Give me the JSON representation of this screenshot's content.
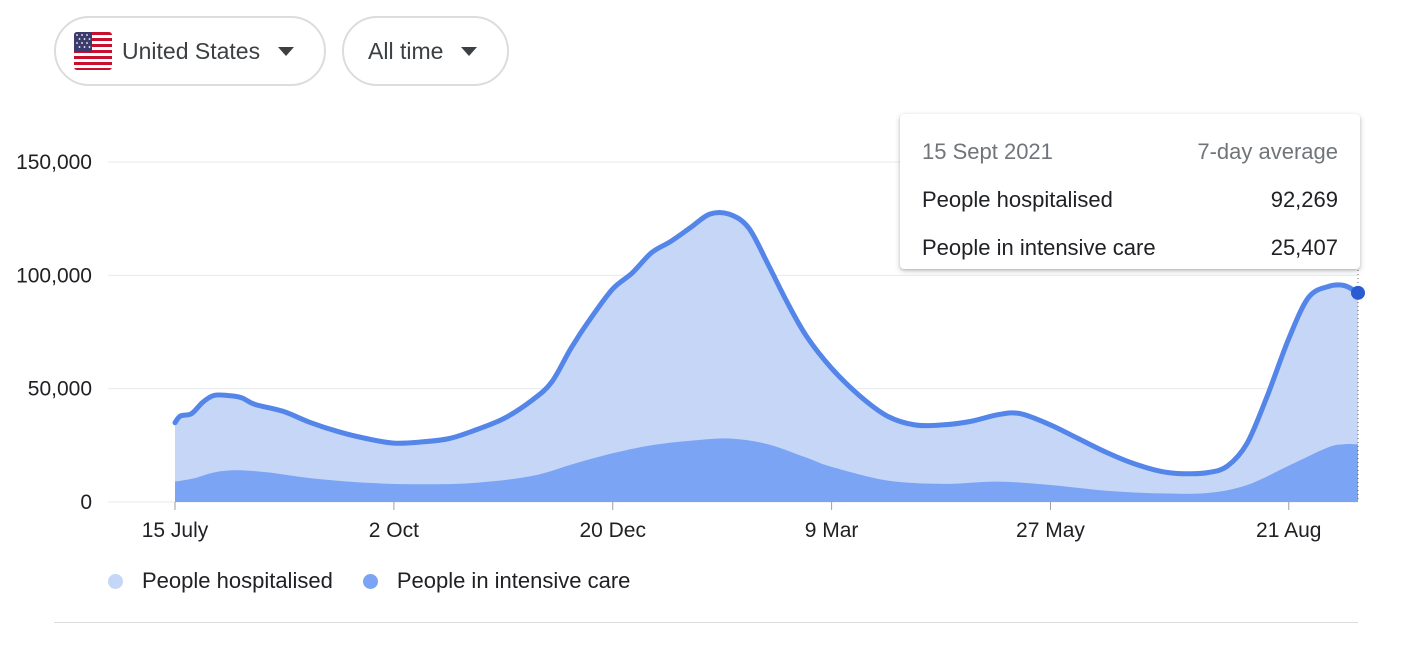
{
  "filters": {
    "country": {
      "label": "United States",
      "icon": "us-flag-icon"
    },
    "period": {
      "label": "All time"
    }
  },
  "tooltip": {
    "date": "15 Sept 2021",
    "header_right": "7-day average",
    "rows": [
      {
        "label": "People hospitalised",
        "value": "92,269"
      },
      {
        "label": "People in intensive care",
        "value": "25,407"
      }
    ]
  },
  "legend": [
    {
      "label": "People hospitalised",
      "color": "#c5d6f7"
    },
    {
      "label": "People in intensive care",
      "color": "#7ba4f5"
    }
  ],
  "colors": {
    "hospitalised_fill": "#c5d6f7",
    "icu_fill": "#7ba4f5",
    "line": "#5485e8",
    "marker": "#2a5bd0",
    "grid": "#e8eaed"
  },
  "chart_data": {
    "type": "area",
    "title": "",
    "xlabel": "",
    "ylabel": "",
    "x_start": "2020-07-15",
    "x_end": "2021-09-15",
    "ylim": [
      0,
      150000
    ],
    "yticks": [
      {
        "value": 0,
        "label": "0"
      },
      {
        "value": 50000,
        "label": "50,000"
      },
      {
        "value": 100000,
        "label": "100,000"
      },
      {
        "value": 150000,
        "label": "150,000"
      }
    ],
    "xticks": [
      {
        "date": "2020-07-15",
        "label": "15 July"
      },
      {
        "date": "2020-10-02",
        "label": "2 Oct"
      },
      {
        "date": "2020-12-20",
        "label": "20 Dec"
      },
      {
        "date": "2021-03-09",
        "label": "9 Mar"
      },
      {
        "date": "2021-05-27",
        "label": "27 May"
      },
      {
        "date": "2021-08-21",
        "label": "21 Aug"
      }
    ],
    "grid": true,
    "legend_position": "bottom-left",
    "series": [
      {
        "name": "People hospitalised",
        "points": [
          [
            "2020-07-15",
            35000
          ],
          [
            "2020-07-17",
            38000
          ],
          [
            "2020-07-21",
            39000
          ],
          [
            "2020-07-25",
            44000
          ],
          [
            "2020-07-29",
            47000
          ],
          [
            "2020-08-03",
            47000
          ],
          [
            "2020-08-08",
            46000
          ],
          [
            "2020-08-13",
            43000
          ],
          [
            "2020-08-23",
            40000
          ],
          [
            "2020-09-02",
            35000
          ],
          [
            "2020-09-12",
            31000
          ],
          [
            "2020-09-22",
            28000
          ],
          [
            "2020-10-02",
            26000
          ],
          [
            "2020-10-12",
            26500
          ],
          [
            "2020-10-22",
            28000
          ],
          [
            "2020-11-01",
            32000
          ],
          [
            "2020-11-11",
            37000
          ],
          [
            "2020-11-21",
            45000
          ],
          [
            "2020-11-28",
            53000
          ],
          [
            "2020-12-05",
            68000
          ],
          [
            "2020-12-12",
            81000
          ],
          [
            "2020-12-20",
            94000
          ],
          [
            "2020-12-27",
            101000
          ],
          [
            "2021-01-03",
            110000
          ],
          [
            "2021-01-10",
            115000
          ],
          [
            "2021-01-17",
            121000
          ],
          [
            "2021-01-24",
            127000
          ],
          [
            "2021-01-31",
            127000
          ],
          [
            "2021-02-07",
            121000
          ],
          [
            "2021-02-14",
            105000
          ],
          [
            "2021-02-21",
            88000
          ],
          [
            "2021-02-28",
            73000
          ],
          [
            "2021-03-09",
            59000
          ],
          [
            "2021-03-19",
            47000
          ],
          [
            "2021-03-29",
            38000
          ],
          [
            "2021-04-08",
            34000
          ],
          [
            "2021-04-18",
            34000
          ],
          [
            "2021-04-28",
            35500
          ],
          [
            "2021-05-08",
            38500
          ],
          [
            "2021-05-16",
            39000
          ],
          [
            "2021-05-27",
            34000
          ],
          [
            "2021-06-06",
            28000
          ],
          [
            "2021-06-16",
            22000
          ],
          [
            "2021-06-26",
            17000
          ],
          [
            "2021-07-06",
            13500
          ],
          [
            "2021-07-14",
            12500
          ],
          [
            "2021-07-23",
            13000
          ],
          [
            "2021-07-30",
            16000
          ],
          [
            "2021-08-06",
            26000
          ],
          [
            "2021-08-13",
            46000
          ],
          [
            "2021-08-21",
            72000
          ],
          [
            "2021-08-28",
            90000
          ],
          [
            "2021-09-04",
            95000
          ],
          [
            "2021-09-10",
            95500
          ],
          [
            "2021-09-15",
            92269
          ]
        ]
      },
      {
        "name": "People in intensive care",
        "points": [
          [
            "2020-07-15",
            9000
          ],
          [
            "2020-07-22",
            10500
          ],
          [
            "2020-07-29",
            13000
          ],
          [
            "2020-08-06",
            14000
          ],
          [
            "2020-08-18",
            13000
          ],
          [
            "2020-09-02",
            10500
          ],
          [
            "2020-09-22",
            8500
          ],
          [
            "2020-10-12",
            7800
          ],
          [
            "2020-11-01",
            8500
          ],
          [
            "2020-11-21",
            11500
          ],
          [
            "2020-12-05",
            16500
          ],
          [
            "2020-12-20",
            21500
          ],
          [
            "2021-01-03",
            25000
          ],
          [
            "2021-01-17",
            27000
          ],
          [
            "2021-01-31",
            28000
          ],
          [
            "2021-02-14",
            25500
          ],
          [
            "2021-02-28",
            19500
          ],
          [
            "2021-03-09",
            15500
          ],
          [
            "2021-03-29",
            9500
          ],
          [
            "2021-04-18",
            8000
          ],
          [
            "2021-05-08",
            9000
          ],
          [
            "2021-05-27",
            7500
          ],
          [
            "2021-06-16",
            5000
          ],
          [
            "2021-07-06",
            3800
          ],
          [
            "2021-07-23",
            4000
          ],
          [
            "2021-08-06",
            7500
          ],
          [
            "2021-08-21",
            16000
          ],
          [
            "2021-09-04",
            24000
          ],
          [
            "2021-09-10",
            25500
          ],
          [
            "2021-09-15",
            25407
          ]
        ]
      }
    ],
    "highlight": {
      "date": "2021-09-15",
      "value": 92269
    }
  }
}
